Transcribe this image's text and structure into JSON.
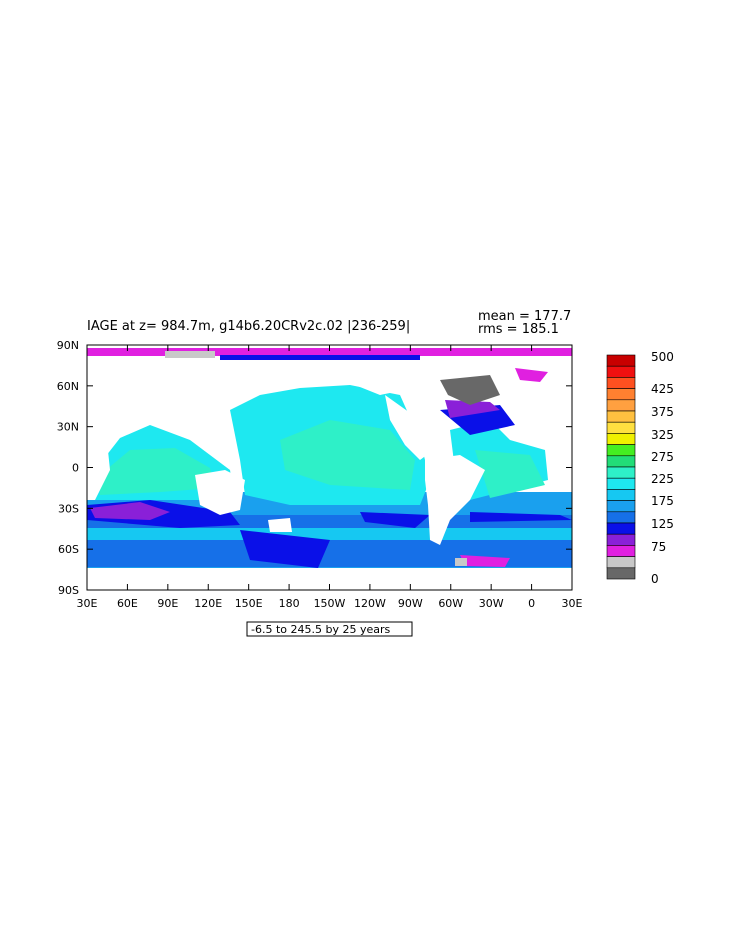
{
  "title": "IAGE at z= 984.7m, g14b6.20CRv2c.02 |236-259|",
  "stats": {
    "mean": "mean = 177.7",
    "rms": "rms = 185.1"
  },
  "contour_note": "-6.5 to 245.5 by 25 years",
  "x_ticks": [
    "30E",
    "60E",
    "90E",
    "120E",
    "150E",
    "180",
    "150W",
    "120W",
    "90W",
    "60W",
    "30W",
    "0",
    "30E"
  ],
  "y_ticks": [
    "90N",
    "60N",
    "30N",
    "0",
    "30S",
    "60S",
    "90S"
  ],
  "colorbar": {
    "colors": [
      "#686868",
      "#c8c8c8",
      "#e020e0",
      "#8a20d8",
      "#0a10e8",
      "#1670e8",
      "#1aa0ee",
      "#16c8f2",
      "#1ee8f0",
      "#2ef0c8",
      "#22dd78",
      "#44ee22",
      "#f0f000",
      "#ffe040",
      "#ffc040",
      "#ffa040",
      "#ff8030",
      "#ff5020",
      "#f01010",
      "#c80000"
    ],
    "labels": [
      "0",
      "75",
      "125",
      "175",
      "225",
      "275",
      "325",
      "375",
      "425",
      "500"
    ]
  },
  "colors": {
    "land": "#ffffff",
    "deep_blue": "#0a10e8",
    "purple": "#8a20d8",
    "magenta": "#e020e0",
    "light_gray": "#c8c8c8",
    "dark_gray": "#686868"
  }
}
